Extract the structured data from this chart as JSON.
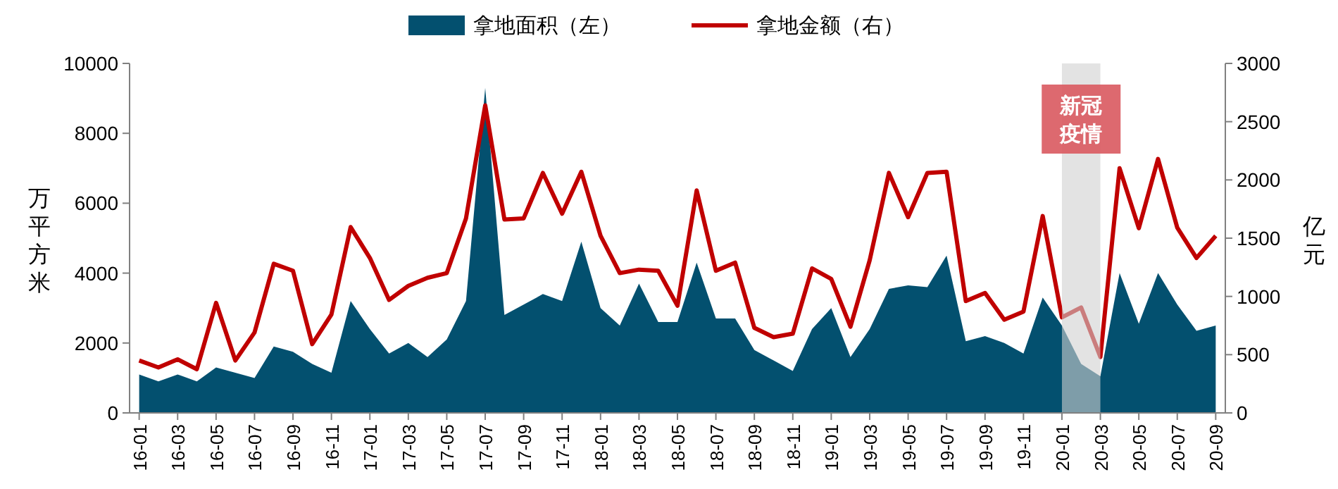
{
  "chart_data": {
    "type": "area",
    "categories": [
      "16-01",
      null,
      "16-03",
      null,
      "16-05",
      null,
      "16-07",
      null,
      "16-09",
      null,
      "16-11",
      null,
      "17-01",
      null,
      "17-03",
      null,
      "17-05",
      null,
      "17-07",
      null,
      "17-09",
      null,
      "17-11",
      null,
      "18-01",
      null,
      "18-03",
      null,
      "18-05",
      null,
      "18-07",
      null,
      "18-09",
      null,
      "18-11",
      null,
      "19-01",
      null,
      "19-03",
      null,
      "19-05",
      null,
      "19-07",
      null,
      "19-09",
      null,
      "19-11",
      null,
      "20-01",
      null,
      "20-03",
      null,
      "20-05",
      null,
      "20-07",
      null,
      "20-09"
    ],
    "series": [
      {
        "name": "拿地面积（左）",
        "color": "#03506f",
        "values": [
          1100,
          900,
          1100,
          900,
          1300,
          1150,
          1000,
          1900,
          1750,
          1400,
          1150,
          3200,
          2400,
          1700,
          2000,
          1600,
          2100,
          3200,
          9300,
          2800,
          3100,
          3400,
          3200,
          4900,
          3000,
          2500,
          3700,
          2600,
          2600,
          4300,
          2700,
          2700,
          1800,
          1500,
          1200,
          2400,
          3000,
          1600,
          2400,
          3550,
          3650,
          3600,
          4500,
          2050,
          2200,
          2000,
          1700,
          3300,
          2500,
          1400,
          1050,
          4000,
          2550,
          4000,
          3100,
          2350,
          2500
        ]
      },
      {
        "name": "拿地金额（右）",
        "type": "line",
        "axis": "y2",
        "color": "#c00000",
        "values": [
          450,
          390,
          460,
          375,
          945,
          450,
          690,
          1280,
          1220,
          590,
          845,
          1595,
          1330,
          970,
          1090,
          1160,
          1200,
          1670,
          2640,
          1660,
          1670,
          2060,
          1710,
          2070,
          1520,
          1200,
          1230,
          1220,
          920,
          1910,
          1220,
          1290,
          730,
          650,
          680,
          1240,
          1150,
          740,
          1310,
          2060,
          1680,
          2060,
          2070,
          960,
          1030,
          800,
          870,
          1690,
          820,
          905,
          480,
          2100,
          1585,
          2180,
          1590,
          1330,
          1520
        ]
      }
    ],
    "ylabel": "万平方米",
    "y2label": "亿元",
    "ylim": [
      0,
      10000
    ],
    "yticks": [
      0,
      2000,
      4000,
      6000,
      8000,
      10000
    ],
    "y2lim": [
      0,
      3000
    ],
    "y2ticks": [
      0,
      500,
      1000,
      1500,
      2000,
      2500,
      3000
    ],
    "bands": [
      {
        "axis": "x",
        "from": "20-01",
        "to": "20-03",
        "label": "新冠疫情",
        "color": "#d0d0d0"
      }
    ],
    "legend": "top",
    "grid": false
  }
}
